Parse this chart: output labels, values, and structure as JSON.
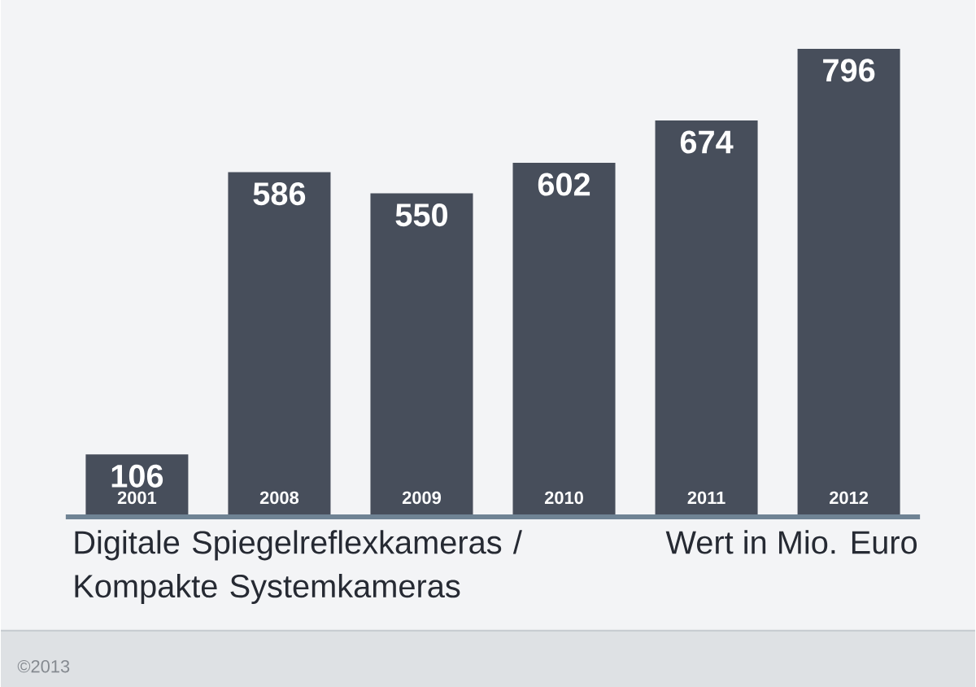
{
  "chart_data": {
    "type": "bar",
    "title": "Digitale Spiegelreflexkameras / Kompakte Systemkameras",
    "annotations": [
      "Wert in Mio. Euro",
      "©2013"
    ],
    "categories": [
      "2001",
      "2008",
      "2009",
      "2010",
      "2011",
      "2012"
    ],
    "values": [
      106,
      586,
      550,
      602,
      674,
      796
    ],
    "color": "#474e5b",
    "data_labels": true
  }
}
